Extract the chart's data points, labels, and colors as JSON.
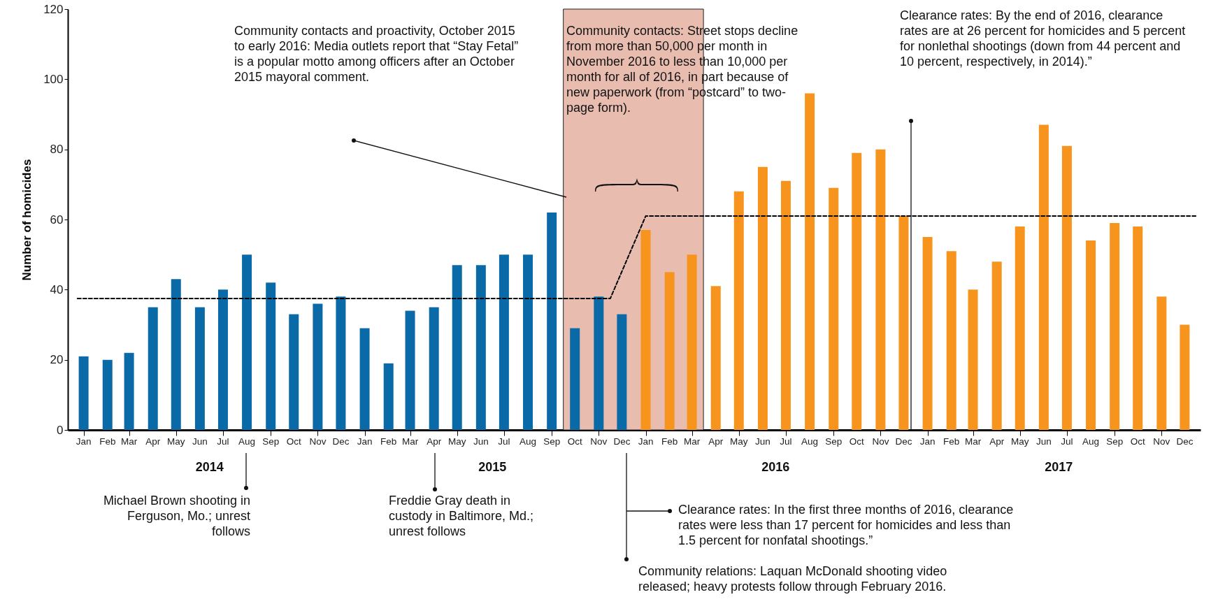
{
  "chart_data": {
    "type": "bar",
    "ylabel": "Number of homicides",
    "ylim": [
      0,
      120
    ],
    "yticks": [
      0,
      20,
      40,
      60,
      80,
      100,
      120
    ],
    "grid": false,
    "xlim": [
      "2013-12-16",
      "2017-12-17"
    ],
    "x": [
      "2014-01",
      "2014-02",
      "2014-03",
      "2014-04",
      "2014-05",
      "2014-06",
      "2014-07",
      "2014-08",
      "2014-09",
      "2014-10",
      "2014-11",
      "2014-12",
      "2015-01",
      "2015-02",
      "2015-03",
      "2015-04",
      "2015-05",
      "2015-06",
      "2015-07",
      "2015-08",
      "2015-09",
      "2015-10",
      "2015-11",
      "2015-12",
      "2016-01",
      "2016-02",
      "2016-03",
      "2016-04",
      "2016-05",
      "2016-06",
      "2016-07",
      "2016-08",
      "2016-09",
      "2016-10",
      "2016-11",
      "2016-12",
      "2017-01",
      "2017-02",
      "2017-03",
      "2017-04",
      "2017-05",
      "2017-06",
      "2017-07",
      "2017-08",
      "2017-09",
      "2017-10",
      "2017-11",
      "2017-12"
    ],
    "xticks": [
      {
        "value": "2014-01",
        "label": "Jan"
      },
      {
        "value": "2014-02",
        "label": "Feb"
      },
      {
        "value": "2014-03",
        "label": "Mar"
      },
      {
        "value": "2014-04",
        "label": "Apr"
      },
      {
        "value": "2014-05",
        "label": "May"
      },
      {
        "value": "2014-06",
        "label": "Jun"
      },
      {
        "value": "2014-07",
        "label": "Jul"
      },
      {
        "value": "2014-08",
        "label": "Aug"
      },
      {
        "value": "2014-09",
        "label": "Sep"
      },
      {
        "value": "2014-10",
        "label": "Oct"
      },
      {
        "value": "2014-11",
        "label": "Nov"
      },
      {
        "value": "2014-12",
        "label": "Dec"
      },
      {
        "value": "2015-01",
        "label": "Jan"
      },
      {
        "value": "2015-02",
        "label": "Feb"
      },
      {
        "value": "2015-03",
        "label": "Mar"
      },
      {
        "value": "2015-04",
        "label": "Apr"
      },
      {
        "value": "2015-05",
        "label": "May"
      },
      {
        "value": "2015-06",
        "label": "Jun"
      },
      {
        "value": "2015-07",
        "label": "Jul"
      },
      {
        "value": "2015-08",
        "label": "Aug"
      },
      {
        "value": "2015-09",
        "label": "Sep"
      },
      {
        "value": "2015-10",
        "label": "Oct"
      },
      {
        "value": "2015-11",
        "label": "Nov"
      },
      {
        "value": "2015-12",
        "label": "Dec"
      },
      {
        "value": "2016-01",
        "label": "Jan"
      },
      {
        "value": "2016-02",
        "label": "Feb"
      },
      {
        "value": "2016-03",
        "label": "Mar"
      },
      {
        "value": "2016-04",
        "label": "Apr"
      },
      {
        "value": "2016-05",
        "label": "May"
      },
      {
        "value": "2016-06",
        "label": "Jun"
      },
      {
        "value": "2016-07",
        "label": "Jul"
      },
      {
        "value": "2016-08",
        "label": "Aug"
      },
      {
        "value": "2016-09",
        "label": "Sep"
      },
      {
        "value": "2016-10",
        "label": "Oct"
      },
      {
        "value": "2016-11",
        "label": "Nov"
      },
      {
        "value": "2016-12",
        "label": "Dec"
      },
      {
        "value": "2017-01",
        "label": "Jan"
      },
      {
        "value": "2017-02",
        "label": "Feb"
      },
      {
        "value": "2017-03",
        "label": "Mar"
      },
      {
        "value": "2017-04",
        "label": "Apr"
      },
      {
        "value": "2017-05",
        "label": "May"
      },
      {
        "value": "2017-06",
        "label": "Jun"
      },
      {
        "value": "2017-07",
        "label": "Jul"
      },
      {
        "value": "2017-08",
        "label": "Aug"
      },
      {
        "value": "2017-09",
        "label": "Sep"
      },
      {
        "value": "2017-10",
        "label": "Oct"
      },
      {
        "value": "2017-11",
        "label": "Nov"
      },
      {
        "value": "2017-12",
        "label": "Dec"
      }
    ],
    "series": [
      {
        "color": "#0a6aa8",
        "values": [
          21,
          20,
          22,
          35,
          43,
          35,
          40,
          50,
          42,
          33,
          36,
          38,
          29,
          19,
          34,
          35,
          47,
          47,
          50,
          50,
          62,
          29,
          38,
          33,
          null,
          null,
          null,
          null,
          null,
          null,
          null,
          null,
          null,
          null,
          null,
          null,
          null,
          null,
          null,
          null,
          null,
          null,
          null,
          null,
          null,
          null,
          null,
          null
        ]
      },
      {
        "color": "#f7941d",
        "values": [
          null,
          null,
          null,
          null,
          null,
          null,
          null,
          null,
          null,
          null,
          null,
          null,
          null,
          null,
          null,
          null,
          null,
          null,
          null,
          null,
          null,
          null,
          null,
          null,
          57,
          45,
          50,
          41,
          68,
          75,
          71,
          96,
          69,
          79,
          80,
          61,
          55,
          51,
          40,
          48,
          58,
          87,
          81,
          54,
          59,
          58,
          38,
          30
        ]
      },
      {
        "type": "line",
        "color": "#000000",
        "line_style": "dashed",
        "x": [
          "2013-12-24",
          "2015-11-16",
          "2016-01-01",
          "2017-12-17"
        ],
        "values": [
          37.5,
          37.5,
          61,
          61
        ]
      }
    ],
    "bands": [
      {
        "axis": "x",
        "from": "2015-09-16",
        "to": "2016-03-16",
        "color": "#e8bdb0"
      }
    ],
    "annotations": [
      "Community contacts and proactivity, October 2015 to early 2016: Media outlets report that “Stay Fetal” is a popular motto among officers after an October 2015 mayoral comment.",
      "Community contacts: Street stops decline from more than 50,000 per month in November 2016 to less than 10,000 per month for all of 2016, in part because of new paperwork (from “postcard” to two-page form).",
      "Clearance rates: By the end of 2016, clearance rates are at 26 percent for homicides and 5 percent for nonlethal shootings (down from 44 percent and 10 percent, respectively, in 2014).”",
      "Michael Brown shooting in Ferguson, Mo.; unrest follows",
      "Freddie Gray death in custody in Baltimore, Md.; unrest follows",
      "Clearance rates: In the first three months of 2016, clearance rates were less than 17 percent for homicides and less than 1.5 percent for nonfatal shootings.”",
      "Community relations: Laquan McDonald shooting video released; heavy protests follow through February 2016.",
      "2014",
      "2015",
      "2016",
      "2017"
    ]
  }
}
